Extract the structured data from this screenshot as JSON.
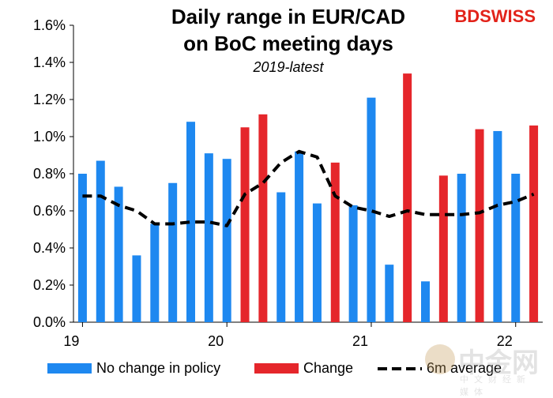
{
  "brand": {
    "part1": "BD",
    "part2": "SWISS"
  },
  "watermark": {
    "text": "中金网",
    "sub": "中文财经新媒体"
  },
  "chart_data": {
    "type": "bar",
    "title_lines": [
      "Daily range in EUR/CAD",
      "on BoC meeting days"
    ],
    "subtitle": "2019-latest",
    "xlabel": "",
    "ylabel": "",
    "ylim": [
      0,
      1.6
    ],
    "yticks": [
      "0.0%",
      "0.2%",
      "0.4%",
      "0.6%",
      "0.8%",
      "1.0%",
      "1.2%",
      "1.4%",
      "1.6%"
    ],
    "ytick_values": [
      0,
      0.2,
      0.4,
      0.6,
      0.8,
      1.0,
      1.2,
      1.4,
      1.6
    ],
    "xtick_labels": [
      "19",
      "20",
      "21",
      "22"
    ],
    "xtick_positions": [
      0.5,
      8.5,
      16.5,
      24.5
    ],
    "grid": false,
    "legend_position": "bottom",
    "series": [
      {
        "name": "No change in policy",
        "color": "#1e88f0",
        "values": [
          0.8,
          0.87,
          0.73,
          0.36,
          0.53,
          0.75,
          1.08,
          0.91,
          0.88,
          null,
          null,
          0.7,
          0.92,
          0.64,
          null,
          0.63,
          1.21,
          0.31,
          null,
          0.22,
          null,
          0.8,
          null,
          1.03,
          0.8,
          null
        ]
      },
      {
        "name": "Change",
        "color": "#e5262b",
        "values": [
          null,
          null,
          null,
          null,
          null,
          null,
          null,
          null,
          null,
          1.05,
          1.12,
          null,
          null,
          null,
          0.86,
          null,
          null,
          null,
          1.34,
          null,
          0.79,
          null,
          1.04,
          null,
          null,
          1.06
        ]
      },
      {
        "name": "6m average",
        "color": "#000000",
        "type": "line",
        "values": [
          0.68,
          0.68,
          0.63,
          0.6,
          0.53,
          0.53,
          0.54,
          0.54,
          0.52,
          0.69,
          0.75,
          0.86,
          0.92,
          0.89,
          0.68,
          0.62,
          0.6,
          0.57,
          0.6,
          0.58,
          0.58,
          0.58,
          0.59,
          0.63,
          0.65,
          0.69
        ]
      }
    ]
  }
}
